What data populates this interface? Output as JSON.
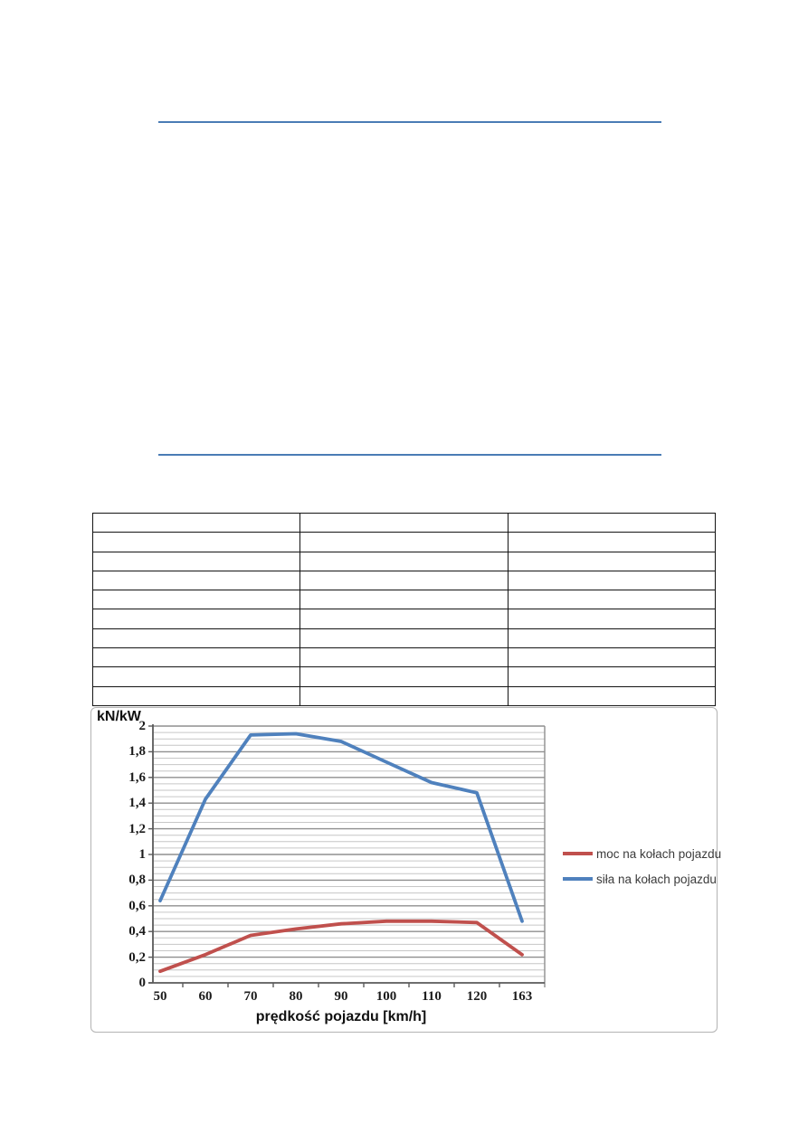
{
  "page": {
    "background": "#ffffff"
  },
  "rules": {
    "color": "#4a7cb5"
  },
  "table": {
    "rows": 10,
    "columns": 3,
    "border_color": "#141414"
  },
  "chart_data": {
    "type": "line",
    "y_unit_label": "kN/kW",
    "xlabel": "prędkość pojazdu [km/h]",
    "categories": [
      "50",
      "60",
      "70",
      "80",
      "90",
      "100",
      "110",
      "120",
      "163"
    ],
    "y_ticks": [
      "2",
      "1,8",
      "1,6",
      "1,4",
      "1,2",
      "1",
      "0,8",
      "0,6",
      "0,4",
      "0,2",
      "0"
    ],
    "ylim": [
      0,
      2
    ],
    "major_step": 0.2,
    "minor_step": 0.05,
    "grid": true,
    "legend_position": "right",
    "series": [
      {
        "name": "moc na kołach pojazdu",
        "color": "#c0504d",
        "values": [
          0.09,
          0.22,
          0.37,
          0.42,
          0.46,
          0.48,
          0.48,
          0.47,
          0.22
        ]
      },
      {
        "name": "siła na kołach pojazdu",
        "color": "#4f81bd",
        "values": [
          0.64,
          1.43,
          1.93,
          1.94,
          1.88,
          1.72,
          1.56,
          1.48,
          0.48
        ]
      }
    ],
    "colors": {
      "major_grid": "#8f8f8f",
      "minor_grid": "#c6c6c6",
      "axis": "#5a5a5a"
    }
  }
}
